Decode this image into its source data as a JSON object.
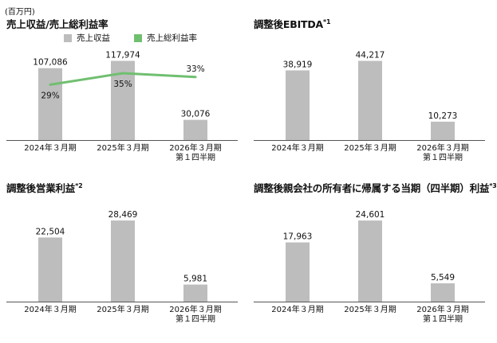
{
  "unit_label": "(百万円)",
  "colors": {
    "bar": "#bdbdbd",
    "line": "#70bf70",
    "axis": "#555555",
    "text": "#111111"
  },
  "chart_data": [
    {
      "type": "bar",
      "title": "売上収益/売上総利益率",
      "title_sup": "",
      "legend": [
        {
          "label": "売上収益",
          "color": "#bdbdbd",
          "kind": "bar"
        },
        {
          "label": "売上総利益率",
          "color": "#70bf70",
          "kind": "line"
        }
      ],
      "categories": [
        "2024年３月期",
        "2025年３月期",
        "2026年３月期\n第１四半期"
      ],
      "values": [
        107086,
        117974,
        30076
      ],
      "value_labels": [
        "107,086",
        "117,974",
        "30,076"
      ],
      "line_series": {
        "name": "売上総利益率",
        "values": [
          29,
          35,
          33
        ],
        "labels": [
          "29%",
          "35%",
          "33%"
        ]
      },
      "ylim": [
        0,
        128000
      ],
      "line_ylim": [
        0,
        45
      ]
    },
    {
      "type": "bar",
      "title": "調整後EBITDA",
      "title_sup": "*1",
      "categories": [
        "2024年３月期",
        "2025年３月期",
        "2026年３月期\n第１四半期"
      ],
      "values": [
        38919,
        44217,
        10273
      ],
      "value_labels": [
        "38,919",
        "44,217",
        "10,273"
      ],
      "ylim": [
        0,
        48000
      ]
    },
    {
      "type": "bar",
      "title": "調整後営業利益",
      "title_sup": "*2",
      "categories": [
        "2024年３月期",
        "2025年３月期",
        "2026年３月期\n第１四半期"
      ],
      "values": [
        22504,
        28469,
        5981
      ],
      "value_labels": [
        "22,504",
        "28,469",
        "5,981"
      ],
      "ylim": [
        0,
        31000
      ]
    },
    {
      "type": "bar",
      "title": "調整後親会社の所有者に帰属する当期（四半期）利益",
      "title_sup": "*3",
      "categories": [
        "2024年３月期",
        "2025年３月期",
        "2026年３月期\n第１四半期"
      ],
      "values": [
        17963,
        24601,
        5549
      ],
      "value_labels": [
        "17,963",
        "24,601",
        "5,549"
      ],
      "ylim": [
        0,
        26800
      ]
    }
  ]
}
